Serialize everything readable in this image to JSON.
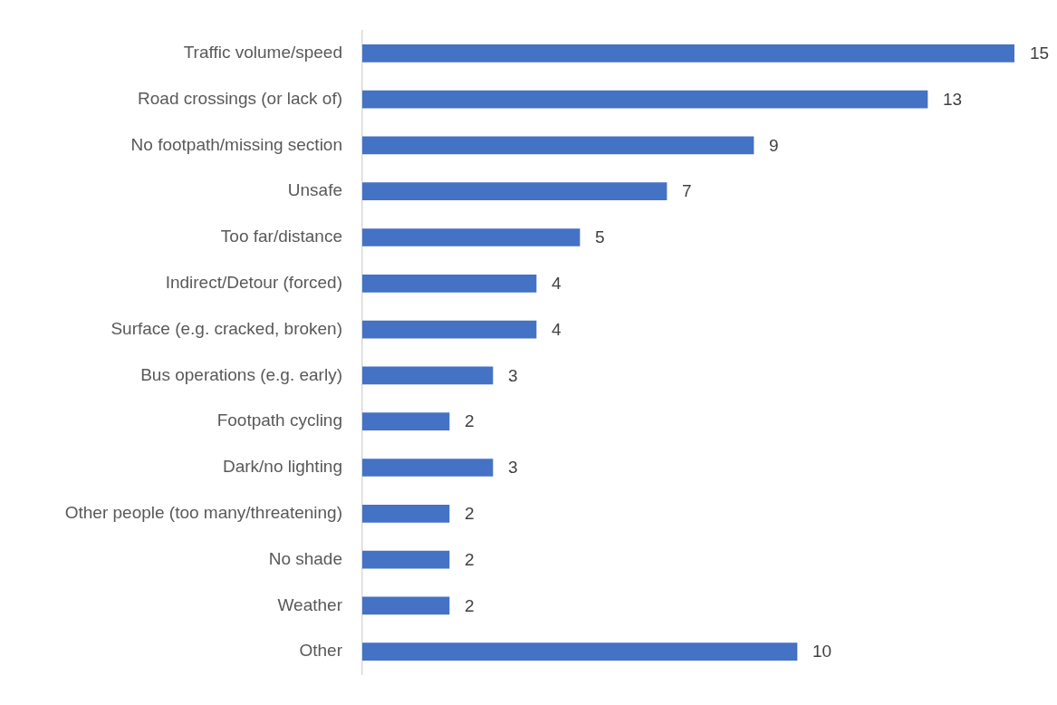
{
  "chart_data": {
    "type": "bar",
    "orientation": "horizontal",
    "categories": [
      "Traffic volume/speed",
      "Road crossings (or lack of)",
      "No footpath/missing section",
      "Unsafe",
      "Too far/distance",
      "Indirect/Detour (forced)",
      "Surface (e.g. cracked, broken)",
      "Bus operations (e.g. early)",
      "Footpath cycling",
      "Dark/no lighting",
      "Other people (too many/threatening)",
      "No shade",
      "Weather",
      "Other"
    ],
    "values": [
      15,
      13,
      9,
      7,
      5,
      4,
      4,
      3,
      2,
      3,
      2,
      2,
      2,
      10
    ],
    "color": "#4472c4",
    "data_labels": true
  }
}
